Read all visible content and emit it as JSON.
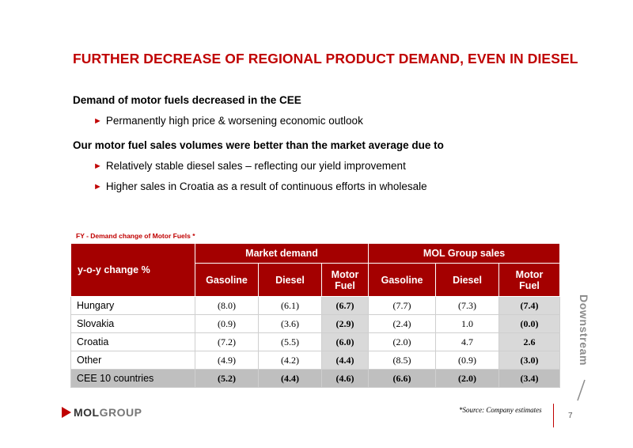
{
  "title": "FURTHER DECREASE OF REGIONAL PRODUCT DEMAND, EVEN IN DIESEL",
  "bullets": {
    "heading1": "Demand of motor fuels decreased in the CEE",
    "item1": "Permanently high price & worsening economic outlook",
    "heading2": "Our motor fuel sales volumes were better than the market average due to",
    "item2": "Relatively stable diesel sales – reflecting our  yield improvement",
    "item3": "Higher sales in Croatia as a result of continuous efforts in wholesale"
  },
  "table": {
    "caption": "FY - Demand change of Motor Fuels *",
    "corner_header": "y-o-y change %",
    "group_market": "Market demand",
    "group_mol": "MOL Group sales",
    "columns": [
      "Gasoline",
      "Diesel",
      "Motor Fuel",
      "Gasoline",
      "Diesel",
      "Motor Fuel"
    ],
    "rows": [
      {
        "label": "Hungary",
        "values": [
          "(8.0)",
          "(6.1)",
          "(6.7)",
          "(7.7)",
          "(7.3)",
          "(7.4)"
        ]
      },
      {
        "label": "Slovakia",
        "values": [
          "(0.9)",
          "(3.6)",
          "(2.9)",
          "(2.4)",
          "1.0",
          "(0.0)"
        ]
      },
      {
        "label": "Croatia",
        "values": [
          "(7.2)",
          "(5.5)",
          "(6.0)",
          "(2.0)",
          "4.7",
          "2.6"
        ]
      },
      {
        "label": "Other",
        "values": [
          "(4.9)",
          "(4.2)",
          "(4.4)",
          "(8.5)",
          "(0.9)",
          "(3.0)"
        ]
      },
      {
        "label": "CEE 10 countries",
        "values": [
          "(5.2)",
          "(4.4)",
          "(4.6)",
          "(6.6)",
          "(2.0)",
          "(3.4)"
        ]
      }
    ]
  },
  "footer": {
    "source": "*Source: Company estimates",
    "page_number": "7",
    "logo_prefix": "MOL",
    "logo_suffix": "GROUP",
    "section_label": "Downstream"
  },
  "colors": {
    "accent": "#c00000",
    "table_header": "#a40000",
    "motor_fuel_cell": "#d9d9d9",
    "total_row": "#bfbfbf"
  }
}
